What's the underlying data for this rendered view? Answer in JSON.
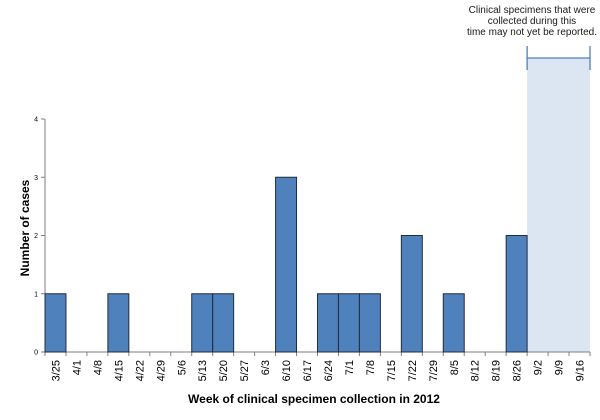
{
  "chart_data": {
    "type": "bar",
    "title": "",
    "xlabel": "Week of clinical specimen collection in 2012",
    "ylabel": "Number of cases",
    "ylim": [
      0,
      4
    ],
    "yticks": [
      "0",
      "1",
      "2",
      "3",
      "4"
    ],
    "categories": [
      "3/25",
      "4/1",
      "4/8",
      "4/15",
      "4/22",
      "4/29",
      "5/6",
      "5/13",
      "5/20",
      "5/27",
      "6/3",
      "6/10",
      "6/17",
      "6/24",
      "7/1",
      "7/8",
      "7/15",
      "7/22",
      "7/29",
      "8/5",
      "8/12",
      "8/19",
      "8/26",
      "9/2",
      "9/9",
      "9/16"
    ],
    "values": [
      1,
      0,
      0,
      1,
      0,
      0,
      0,
      1,
      1,
      0,
      0,
      3,
      0,
      1,
      1,
      1,
      0,
      2,
      0,
      1,
      0,
      0,
      2,
      0,
      0,
      0
    ],
    "bar_color": "#4f81bd",
    "bar_edge_color": "#1f2d3d",
    "reporting_lag": {
      "start_category": "9/2",
      "end_category": "9/16",
      "shade_color": "#dce6f2",
      "bracket_color": "#4f81bd",
      "note_lines": [
        "Clinical specimens that were",
        "collected during this",
        "time may not yet be reported."
      ]
    }
  }
}
